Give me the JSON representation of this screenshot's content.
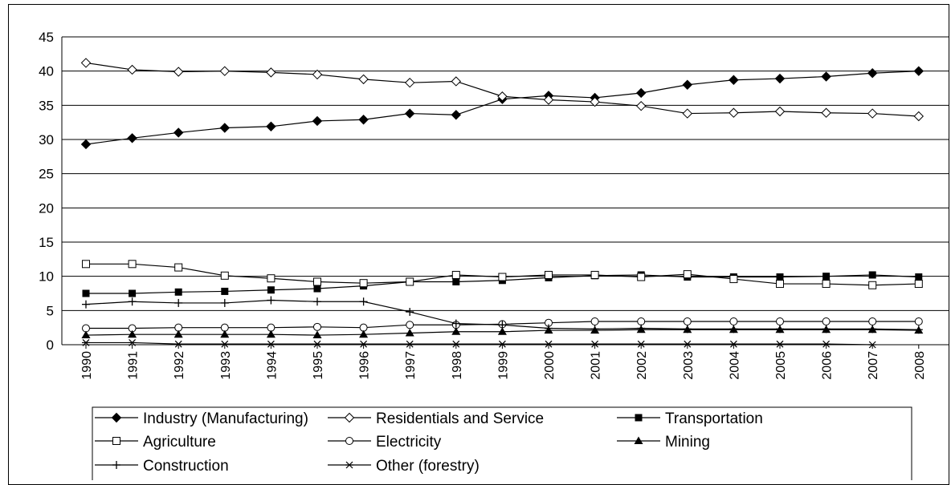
{
  "chart_data": {
    "type": "line",
    "title": "",
    "xlabel": "",
    "ylabel": "",
    "ylim": [
      0,
      45
    ],
    "yticks": [
      "0",
      "5",
      "10",
      "15",
      "20",
      "25",
      "30",
      "35",
      "40",
      "45"
    ],
    "grid": "horizontal",
    "legend_position": "bottom",
    "categories": [
      "1990",
      "1991",
      "1992",
      "1993",
      "1994",
      "1995",
      "1996",
      "1997",
      "1998",
      "1999",
      "2000",
      "2001",
      "2002",
      "2003",
      "2004",
      "2005",
      "2006",
      "2007",
      "2008"
    ],
    "series": [
      {
        "name": "Industry (Manufacturing)",
        "marker": "filled-diamond",
        "values": [
          29.3,
          30.2,
          31.0,
          31.7,
          31.9,
          32.7,
          32.9,
          33.8,
          33.6,
          35.9,
          36.4,
          36.1,
          36.8,
          38.0,
          38.7,
          38.9,
          39.2,
          39.7,
          40.0
        ]
      },
      {
        "name": "Residentials and Service",
        "marker": "open-diamond",
        "values": [
          41.2,
          40.2,
          39.9,
          40.0,
          39.8,
          39.5,
          38.8,
          38.3,
          38.5,
          36.3,
          35.8,
          35.5,
          34.9,
          33.8,
          33.9,
          34.1,
          33.9,
          33.8,
          33.4
        ]
      },
      {
        "name": "Transportation",
        "marker": "filled-square",
        "values": [
          7.5,
          7.5,
          7.7,
          7.8,
          8.0,
          8.2,
          8.6,
          9.2,
          9.2,
          9.4,
          9.8,
          10.1,
          10.2,
          9.9,
          9.9,
          9.9,
          10.0,
          10.2,
          9.9
        ]
      },
      {
        "name": "Agriculture",
        "marker": "open-square",
        "values": [
          11.8,
          11.8,
          11.3,
          10.1,
          9.7,
          9.2,
          9.0,
          9.2,
          10.2,
          9.9,
          10.2,
          10.2,
          9.9,
          10.3,
          9.6,
          8.9,
          8.9,
          8.7,
          8.9
        ]
      },
      {
        "name": "Electricity",
        "marker": "open-circle",
        "values": [
          2.4,
          2.4,
          2.5,
          2.5,
          2.5,
          2.6,
          2.5,
          2.9,
          2.9,
          3.0,
          3.2,
          3.4,
          3.4,
          3.4,
          3.4,
          3.4,
          3.4,
          3.4,
          3.4
        ]
      },
      {
        "name": "Mining",
        "marker": "filled-triangle",
        "values": [
          1.4,
          1.5,
          1.5,
          1.5,
          1.5,
          1.4,
          1.5,
          1.7,
          1.9,
          1.9,
          2.1,
          2.1,
          2.2,
          2.2,
          2.2,
          2.2,
          2.2,
          2.2,
          2.1
        ]
      },
      {
        "name": "Construction",
        "marker": "plus",
        "values": [
          5.9,
          6.3,
          6.1,
          6.1,
          6.5,
          6.3,
          6.3,
          4.8,
          3.1,
          2.9,
          2.4,
          2.3,
          2.4,
          2.3,
          2.3,
          2.3,
          2.3,
          2.3,
          2.2
        ]
      },
      {
        "name": "Other (forestry)",
        "marker": "asterisk",
        "values": [
          0.3,
          0.3,
          0.1,
          0.1,
          0.1,
          0.1,
          0.1,
          0.1,
          0.1,
          0.1,
          0.1,
          0.1,
          0.1,
          0.1,
          0.1,
          0.1,
          0.1,
          0.0,
          null
        ]
      }
    ]
  }
}
